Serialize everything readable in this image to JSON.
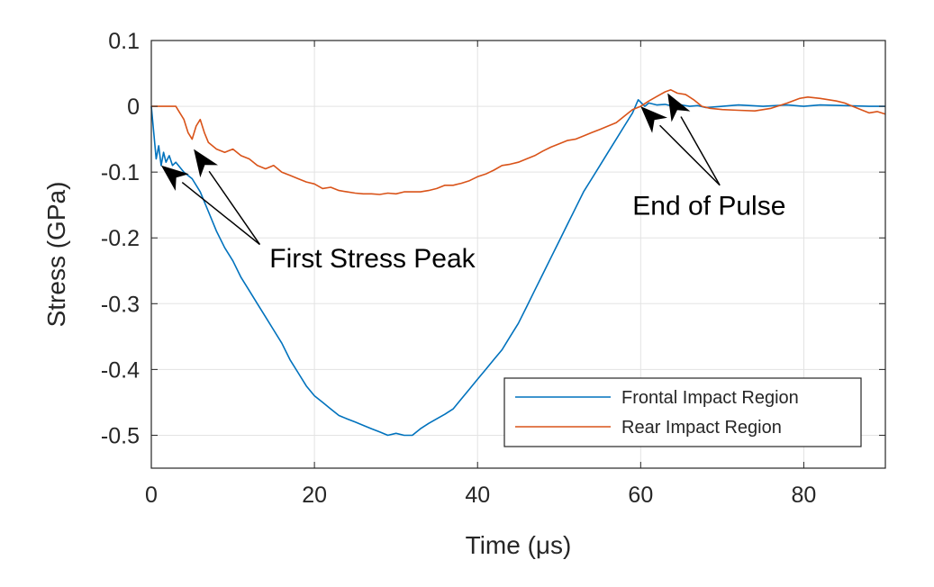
{
  "chart_data": {
    "type": "line",
    "xlabel": "Time (μs)",
    "ylabel": "Stress (GPa)",
    "xlim": [
      0,
      90
    ],
    "ylim": [
      -0.55,
      0.1
    ],
    "x_ticks": [
      "0",
      "20",
      "40",
      "60",
      "80"
    ],
    "x_tick_values": [
      0,
      20,
      40,
      60,
      80
    ],
    "y_ticks": [
      "0.1",
      "0",
      "-0.1",
      "-0.2",
      "-0.3",
      "-0.4",
      "-0.5"
    ],
    "y_tick_values": [
      0.1,
      0,
      -0.1,
      -0.2,
      -0.3,
      -0.4,
      -0.5
    ],
    "grid": true,
    "legend_position": "bottom-right",
    "series": [
      {
        "name": "Frontal Impact Region",
        "color": "#0072BD",
        "points": [
          [
            0,
            0
          ],
          [
            0.3,
            -0.04
          ],
          [
            0.6,
            -0.08
          ],
          [
            0.9,
            -0.06
          ],
          [
            1.2,
            -0.09
          ],
          [
            1.5,
            -0.07
          ],
          [
            1.8,
            -0.085
          ],
          [
            2.2,
            -0.075
          ],
          [
            2.6,
            -0.09
          ],
          [
            3,
            -0.085
          ],
          [
            4,
            -0.1
          ],
          [
            5,
            -0.11
          ],
          [
            6,
            -0.13
          ],
          [
            7,
            -0.16
          ],
          [
            8,
            -0.19
          ],
          [
            9,
            -0.215
          ],
          [
            10,
            -0.235
          ],
          [
            11,
            -0.26
          ],
          [
            12,
            -0.28
          ],
          [
            13,
            -0.3
          ],
          [
            14,
            -0.32
          ],
          [
            15,
            -0.34
          ],
          [
            16,
            -0.36
          ],
          [
            17,
            -0.385
          ],
          [
            18,
            -0.405
          ],
          [
            19,
            -0.425
          ],
          [
            20,
            -0.44
          ],
          [
            21,
            -0.45
          ],
          [
            22,
            -0.46
          ],
          [
            23,
            -0.47
          ],
          [
            24,
            -0.475
          ],
          [
            25,
            -0.48
          ],
          [
            26,
            -0.485
          ],
          [
            27,
            -0.49
          ],
          [
            28,
            -0.495
          ],
          [
            29,
            -0.5
          ],
          [
            30,
            -0.497
          ],
          [
            31,
            -0.5
          ],
          [
            32,
            -0.5
          ],
          [
            33,
            -0.49
          ],
          [
            34,
            -0.482
          ],
          [
            35,
            -0.475
          ],
          [
            36,
            -0.468
          ],
          [
            37,
            -0.46
          ],
          [
            38,
            -0.445
          ],
          [
            39,
            -0.43
          ],
          [
            40,
            -0.415
          ],
          [
            41,
            -0.4
          ],
          [
            42,
            -0.385
          ],
          [
            43,
            -0.37
          ],
          [
            44,
            -0.35
          ],
          [
            45,
            -0.33
          ],
          [
            46,
            -0.305
          ],
          [
            47,
            -0.28
          ],
          [
            48,
            -0.255
          ],
          [
            49,
            -0.23
          ],
          [
            50,
            -0.205
          ],
          [
            51,
            -0.18
          ],
          [
            52,
            -0.155
          ],
          [
            53,
            -0.13
          ],
          [
            54,
            -0.11
          ],
          [
            55,
            -0.09
          ],
          [
            56,
            -0.07
          ],
          [
            57,
            -0.05
          ],
          [
            58,
            -0.03
          ],
          [
            59,
            -0.01
          ],
          [
            59.7,
            0.01
          ],
          [
            60.5,
            0
          ],
          [
            61,
            0.005
          ],
          [
            62,
            0.002
          ],
          [
            63,
            0.003
          ],
          [
            64,
            0
          ],
          [
            65,
            0.002
          ],
          [
            66,
            0
          ],
          [
            67,
            0.001
          ],
          [
            68,
            -0.002
          ],
          [
            70,
            0
          ],
          [
            72,
            0.002
          ],
          [
            75,
            0
          ],
          [
            78,
            0.002
          ],
          [
            80,
            0
          ],
          [
            82,
            0.002
          ],
          [
            85,
            0.001
          ],
          [
            88,
            0
          ],
          [
            90,
            0
          ]
        ]
      },
      {
        "name": "Rear Impact Region",
        "color": "#D95319",
        "points": [
          [
            0,
            0
          ],
          [
            2,
            0
          ],
          [
            3,
            0
          ],
          [
            3.5,
            -0.01
          ],
          [
            4,
            -0.02
          ],
          [
            4.5,
            -0.04
          ],
          [
            5,
            -0.05
          ],
          [
            5.5,
            -0.03
          ],
          [
            6,
            -0.02
          ],
          [
            6.5,
            -0.04
          ],
          [
            7,
            -0.055
          ],
          [
            8,
            -0.065
          ],
          [
            9,
            -0.07
          ],
          [
            10,
            -0.065
          ],
          [
            11,
            -0.075
          ],
          [
            12,
            -0.08
          ],
          [
            13,
            -0.09
          ],
          [
            14,
            -0.095
          ],
          [
            15,
            -0.09
          ],
          [
            16,
            -0.1
          ],
          [
            17,
            -0.105
          ],
          [
            18,
            -0.11
          ],
          [
            19,
            -0.115
          ],
          [
            20,
            -0.118
          ],
          [
            21,
            -0.125
          ],
          [
            22,
            -0.123
          ],
          [
            23,
            -0.128
          ],
          [
            24,
            -0.13
          ],
          [
            25,
            -0.132
          ],
          [
            26,
            -0.133
          ],
          [
            27,
            -0.133
          ],
          [
            28,
            -0.134
          ],
          [
            29,
            -0.132
          ],
          [
            30,
            -0.133
          ],
          [
            31,
            -0.13
          ],
          [
            32,
            -0.13
          ],
          [
            33,
            -0.13
          ],
          [
            34,
            -0.128
          ],
          [
            35,
            -0.125
          ],
          [
            36,
            -0.12
          ],
          [
            37,
            -0.12
          ],
          [
            38,
            -0.117
          ],
          [
            39,
            -0.113
          ],
          [
            40,
            -0.107
          ],
          [
            41,
            -0.103
          ],
          [
            42,
            -0.097
          ],
          [
            43,
            -0.09
          ],
          [
            44,
            -0.088
          ],
          [
            45,
            -0.085
          ],
          [
            46,
            -0.08
          ],
          [
            47,
            -0.075
          ],
          [
            48,
            -0.068
          ],
          [
            49,
            -0.062
          ],
          [
            50,
            -0.057
          ],
          [
            51,
            -0.052
          ],
          [
            52,
            -0.05
          ],
          [
            53,
            -0.045
          ],
          [
            54,
            -0.04
          ],
          [
            55,
            -0.035
          ],
          [
            56,
            -0.03
          ],
          [
            57,
            -0.025
          ],
          [
            58,
            -0.015
          ],
          [
            59,
            -0.005
          ],
          [
            60,
            0
          ],
          [
            61,
            0.008
          ],
          [
            62,
            0.015
          ],
          [
            63,
            0.022
          ],
          [
            63.7,
            0.025
          ],
          [
            64.5,
            0.02
          ],
          [
            65.5,
            0.018
          ],
          [
            66.5,
            0.01
          ],
          [
            67.5,
            0
          ],
          [
            68.5,
            -0.003
          ],
          [
            70,
            -0.005
          ],
          [
            72,
            -0.006
          ],
          [
            74,
            -0.007
          ],
          [
            76,
            -0.003
          ],
          [
            78,
            0.005
          ],
          [
            79.5,
            0.012
          ],
          [
            80.5,
            0.014
          ],
          [
            82,
            0.012
          ],
          [
            84,
            0.008
          ],
          [
            85,
            0.005
          ],
          [
            86,
            0
          ],
          [
            87,
            -0.005
          ],
          [
            88,
            -0.01
          ],
          [
            89,
            -0.008
          ],
          [
            90,
            -0.012
          ]
        ]
      }
    ],
    "annotations": [
      {
        "text": "First Stress Peak",
        "text_at": [
          14.5,
          -0.245
        ],
        "arrow_tips": [
          [
            1.2,
            -0.09
          ],
          [
            5.2,
            -0.065
          ]
        ],
        "arrow_tail": [
          13.3,
          -0.21
        ]
      },
      {
        "text": "End of Pulse",
        "text_at": [
          59,
          -0.165
        ],
        "arrow_tips": [
          [
            60,
            0.0
          ],
          [
            63.3,
            0.02
          ]
        ],
        "arrow_tail": [
          69.7,
          -0.12
        ]
      }
    ]
  }
}
